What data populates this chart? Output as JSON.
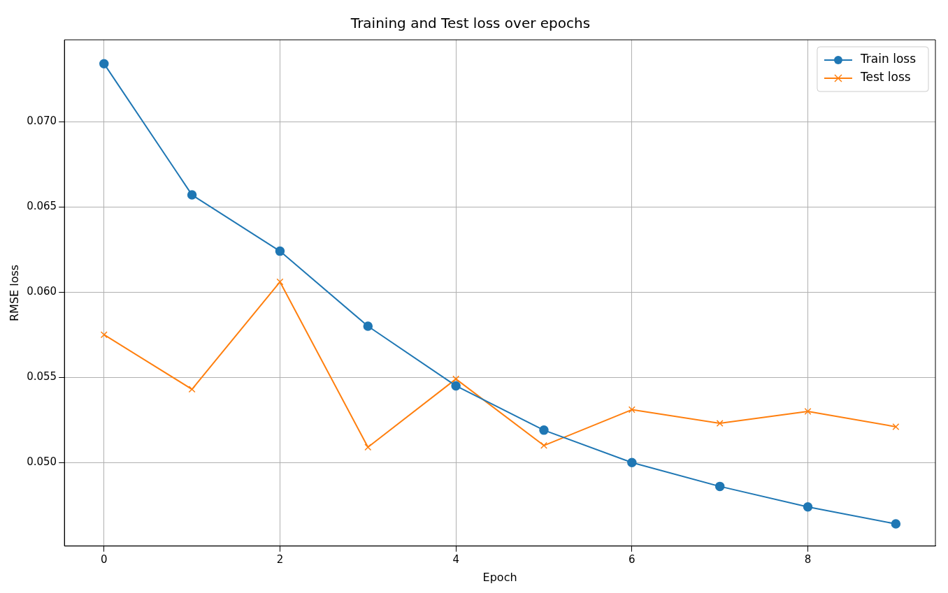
{
  "chart_data": {
    "type": "line",
    "title": "Training and Test loss over epochs",
    "xlabel": "Epoch",
    "ylabel": "RMSE loss",
    "x": [
      0,
      1,
      2,
      3,
      4,
      5,
      6,
      7,
      8,
      9
    ],
    "series": [
      {
        "name": "Train loss",
        "color": "#1f77b4",
        "marker": "circle",
        "values": [
          0.0734,
          0.0657,
          0.0624,
          0.058,
          0.0545,
          0.0519,
          0.05,
          0.0486,
          0.0474,
          0.0464
        ]
      },
      {
        "name": "Test loss",
        "color": "#ff7f0e",
        "marker": "cross",
        "values": [
          0.0575,
          0.0543,
          0.0606,
          0.0509,
          0.0549,
          0.051,
          0.0531,
          0.0523,
          0.053,
          0.0521
        ]
      }
    ],
    "xlim": [
      -0.45,
      9.45
    ],
    "xticks": [
      0,
      2,
      4,
      6,
      8
    ],
    "ylim": [
      0.0451,
      0.0748
    ],
    "yticks": [
      {
        "value": 0.05,
        "label": "0.050"
      },
      {
        "value": 0.055,
        "label": "0.055"
      },
      {
        "value": 0.06,
        "label": "0.060"
      },
      {
        "value": 0.065,
        "label": "0.065"
      },
      {
        "value": 0.07,
        "label": "0.070"
      }
    ],
    "grid": true,
    "legend": "top right",
    "line_style": "solid"
  }
}
